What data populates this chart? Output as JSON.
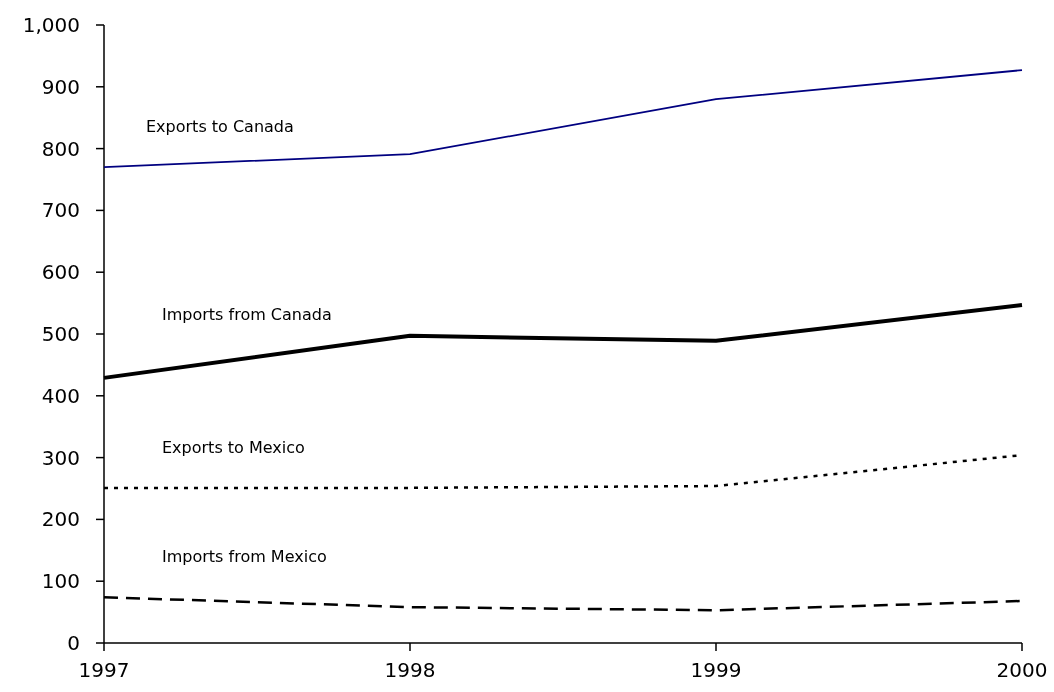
{
  "chart_data": {
    "type": "line",
    "x": [
      1997,
      1998,
      1999,
      2000
    ],
    "xlim": [
      1997,
      2000
    ],
    "xticks": [
      1997,
      1998,
      1999,
      2000
    ],
    "ylim": [
      0,
      1000
    ],
    "yticks": [
      0,
      100,
      200,
      300,
      400,
      500,
      600,
      700,
      800,
      {
        "value": 900,
        "label": "900"
      },
      {
        "value": 1000,
        "label": "1,000"
      }
    ],
    "grid": false,
    "marker": "none",
    "series": [
      {
        "name": "Exports to Canada",
        "color": "#000080",
        "line_style": "solid",
        "values": [
          770,
          791,
          880,
          927
        ]
      },
      {
        "name": "Imports from Canada",
        "color": "#000000",
        "line_style": "solid",
        "values": [
          429,
          497,
          489,
          547
        ]
      },
      {
        "name": "Exports to Mexico",
        "color": "#000000",
        "line_style": "dotted",
        "values": [
          251,
          251,
          254,
          304
        ]
      },
      {
        "name": "Imports from Mexico",
        "color": "#000000",
        "line_style": "dashed",
        "values": [
          74,
          58,
          53,
          68
        ]
      }
    ]
  }
}
